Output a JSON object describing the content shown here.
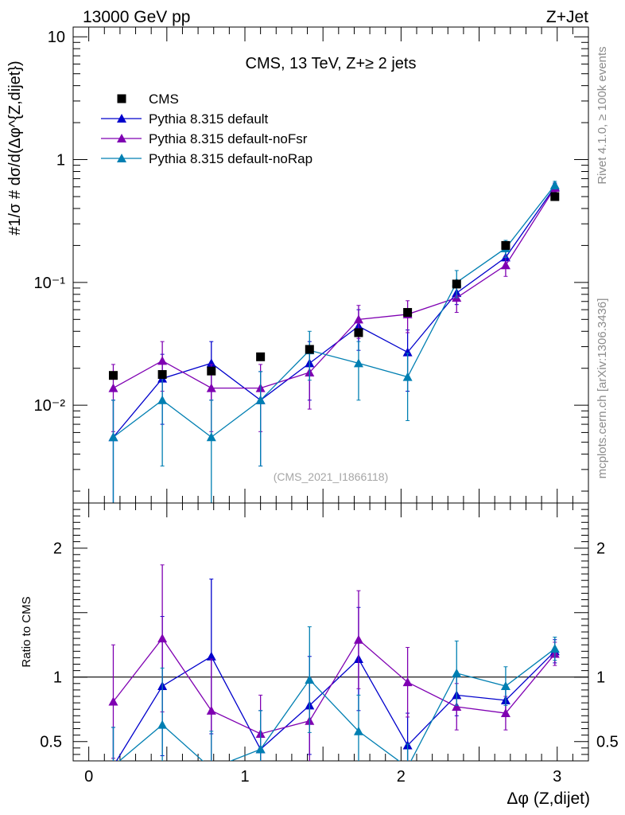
{
  "header": {
    "left": "13000 GeV pp",
    "right": "Z+Jet"
  },
  "side_labels": {
    "rivet": "Rivet 4.1.0, ≥ 100k events",
    "mcplots": "mcplots.cern.ch [arXiv:1306.3436]"
  },
  "colors": {
    "cms": "#000000",
    "default": "#0000cc",
    "noFsr": "#7f00b2",
    "noRap": "#007fb2"
  },
  "chart_data": [
    {
      "type": "scatter",
      "panel": "main",
      "title": "CMS, 13 TeV, Z+≥ 2 jets",
      "analysis_id": "(CMS_2021_I1866118)",
      "ylabel": "#1/σ # dσ/d(Δφ^{Z,dijet})",
      "yscale": "log",
      "ylim": [
        0.0016,
        12
      ],
      "xlim": [
        -0.1,
        3.2
      ],
      "y_tick_labels": [
        "10⁻²",
        "10⁻¹",
        "1",
        "10"
      ],
      "x": [
        0.157,
        0.471,
        0.785,
        1.1,
        1.414,
        1.728,
        2.042,
        2.356,
        2.67,
        2.985
      ],
      "legend": [
        "CMS",
        "Pythia 8.315 default",
        "Pythia 8.315 default-noFsr",
        "Pythia 8.315 default-noRap"
      ],
      "series": [
        {
          "name": "CMS",
          "values": [
            0.0175,
            0.0178,
            0.019,
            0.0248,
            0.0285,
            0.039,
            0.057,
            0.097,
            0.2,
            0.5
          ],
          "errors": [
            0.0,
            0.0,
            0.0,
            0.0,
            0.0,
            0.0,
            0.0,
            0.0,
            0.0,
            0.0
          ],
          "marker": "square"
        },
        {
          "name": "Pythia 8.315 default",
          "values": [
            0.0055,
            0.0165,
            0.022,
            0.011,
            0.022,
            0.044,
            0.027,
            0.082,
            0.16,
            0.6
          ],
          "errors": [
            0.0055,
            0.0095,
            0.011,
            0.0078,
            0.011,
            0.016,
            0.014,
            0.016,
            0.022,
            0.045
          ],
          "marker": "triangle"
        },
        {
          "name": "Pythia 8.315 default-noFsr",
          "values": [
            0.0138,
            0.023,
            0.0138,
            0.0138,
            0.0185,
            0.05,
            0.055,
            0.075,
            0.138,
            0.59
          ],
          "errors": [
            0.0077,
            0.01,
            0.0077,
            0.0077,
            0.0092,
            0.015,
            0.016,
            0.018,
            0.026,
            0.045
          ],
          "marker": "triangle"
        },
        {
          "name": "Pythia 8.315 default-noRap",
          "values": [
            0.0055,
            0.011,
            0.0055,
            0.011,
            0.028,
            0.022,
            0.017,
            0.1,
            0.19,
            0.62
          ],
          "errors": [
            0.0055,
            0.0078,
            0.0055,
            0.0078,
            0.012,
            0.011,
            0.0095,
            0.025,
            0.03,
            0.045
          ],
          "marker": "triangle"
        }
      ]
    },
    {
      "type": "scatter",
      "panel": "ratio",
      "ylabel": "Ratio to CMS",
      "xlabel": "Δφ (Z,dijet)",
      "ylim": [
        0.35,
        2.35
      ],
      "xlim": [
        -0.1,
        3.2
      ],
      "x_tick_labels": [
        "0",
        "1",
        "2",
        "3"
      ],
      "y_tick_labels": [
        "0.5",
        "1",
        "2"
      ],
      "reference_line": 1,
      "x": [
        0.157,
        0.471,
        0.785,
        1.1,
        1.414,
        1.728,
        2.042,
        2.356,
        2.67,
        2.985
      ],
      "series": [
        {
          "name": "Pythia 8.315 default",
          "values": [
            0.31,
            0.93,
            1.16,
            0.44,
            0.78,
            1.14,
            0.47,
            0.86,
            0.82,
            1.2
          ],
          "errors": [
            0.3,
            0.54,
            0.6,
            0.3,
            0.38,
            0.4,
            0.25,
            0.16,
            0.11,
            0.09
          ]
        },
        {
          "name": "Pythia 8.315 default-noFsr",
          "values": [
            0.81,
            1.3,
            0.74,
            0.56,
            0.66,
            1.29,
            0.96,
            0.77,
            0.72,
            1.18
          ],
          "errors": [
            0.44,
            0.57,
            0.4,
            0.3,
            0.33,
            0.38,
            0.27,
            0.18,
            0.13,
            0.09
          ]
        },
        {
          "name": "Pythia 8.315 default-noRap",
          "values": [
            0.31,
            0.63,
            0.29,
            0.44,
            0.98,
            0.58,
            0.3,
            1.03,
            0.93,
            1.22
          ],
          "errors": [
            0.3,
            0.44,
            0.29,
            0.3,
            0.41,
            0.28,
            0.18,
            0.25,
            0.15,
            0.09
          ]
        }
      ]
    }
  ]
}
